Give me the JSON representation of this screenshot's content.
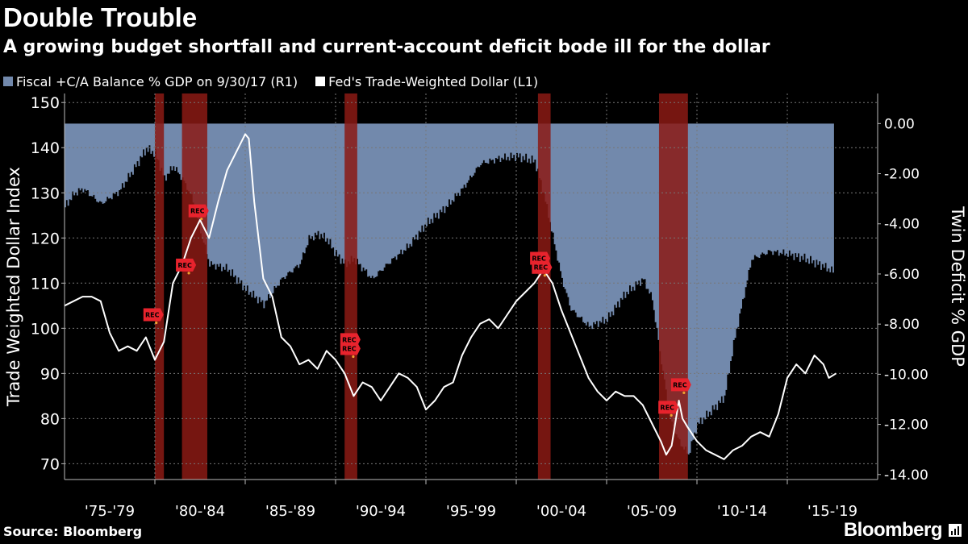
{
  "chart_data": {
    "type": "line+area",
    "title": "Double Trouble",
    "subtitle": "A growing budget shortfall and current-account deficit bode ill for the dollar",
    "legend": [
      {
        "label": "Fiscal +C/A Balance % GDP on 9/30/17 (R1)",
        "color": "#7289ac"
      },
      {
        "label": "Fed's Trade-Weighted Dollar (L1)",
        "color": "#ffffff"
      }
    ],
    "ylabel_left": "Trade Weighted Dollar Index",
    "ylabel_right": "Twin Deficit % GDP",
    "left_ticks": [
      "150",
      "140",
      "130",
      "120",
      "110",
      "100",
      "90",
      "80",
      "70"
    ],
    "right_ticks": [
      "0.00",
      "-2.00",
      "-4.00",
      "-6.00",
      "-8.00",
      "-10.00",
      "-12.00",
      "-14.00"
    ],
    "x_ticks": [
      "'75-'79",
      "'80-'84",
      "'85-'89",
      "'90-'94",
      "'95-'99",
      "'00-'04",
      "'05-'09",
      "'10-'14",
      "'15-'19"
    ],
    "ylim_left": [
      66.5,
      152
    ],
    "ylim_right": [
      -14.2,
      1.2
    ],
    "xlim": [
      1975,
      2020
    ],
    "recessions": [
      [
        1980.0,
        1980.5
      ],
      [
        1981.5,
        1982.9
      ],
      [
        1990.5,
        1991.2
      ],
      [
        2001.2,
        2001.9
      ],
      [
        2007.9,
        2009.5
      ]
    ],
    "rec_label": "REC",
    "rec_markers": [
      {
        "t": 1979.9,
        "v": 103
      },
      {
        "t": 1981.7,
        "v": 114
      },
      {
        "t": 1982.4,
        "v": 126
      },
      {
        "t": 1990.8,
        "v": 97.5
      },
      {
        "t": 1990.8,
        "v": 95.5
      },
      {
        "t": 2001.3,
        "v": 115.5
      },
      {
        "t": 2001.4,
        "v": 113.5
      },
      {
        "t": 2008.4,
        "v": 82.5
      },
      {
        "t": 2009.1,
        "v": 87.5
      }
    ],
    "series": [
      {
        "name": "Fed's Trade-Weighted Dollar",
        "axis": "left",
        "color": "#ffffff",
        "x": [
          1975.0,
          1975.5,
          1976.0,
          1976.5,
          1977.0,
          1977.5,
          1978.0,
          1978.5,
          1979.0,
          1979.5,
          1980.0,
          1980.5,
          1981.0,
          1981.5,
          1982.0,
          1982.5,
          1983.0,
          1983.5,
          1984.0,
          1984.5,
          1985.0,
          1985.2,
          1985.5,
          1986.0,
          1986.5,
          1987.0,
          1987.5,
          1988.0,
          1988.5,
          1989.0,
          1989.5,
          1990.0,
          1990.5,
          1991.0,
          1991.5,
          1992.0,
          1992.5,
          1993.0,
          1993.5,
          1994.0,
          1994.5,
          1995.0,
          1995.5,
          1996.0,
          1996.5,
          1997.0,
          1997.5,
          1998.0,
          1998.5,
          1999.0,
          1999.5,
          2000.0,
          2000.5,
          2001.0,
          2001.5,
          2002.0,
          2002.5,
          2003.0,
          2003.5,
          2004.0,
          2004.5,
          2005.0,
          2005.5,
          2006.0,
          2006.5,
          2007.0,
          2007.5,
          2008.0,
          2008.3,
          2008.6,
          2009.0,
          2009.2,
          2009.5,
          2010.0,
          2010.5,
          2011.0,
          2011.5,
          2012.0,
          2012.5,
          2013.0,
          2013.5,
          2014.0,
          2014.5,
          2015.0,
          2015.5,
          2016.0,
          2016.5,
          2017.0,
          2017.3,
          2017.7
        ],
        "values": [
          105,
          106,
          107,
          107,
          106,
          99,
          95,
          96,
          95,
          98,
          93,
          97,
          110,
          114,
          120,
          124,
          120,
          128,
          135,
          139,
          143,
          142,
          128,
          111,
          107,
          98,
          96,
          92,
          93,
          91,
          95,
          93,
          90,
          85,
          88,
          87,
          84,
          87,
          90,
          89,
          87,
          82,
          84,
          87,
          88,
          94,
          98,
          101,
          102,
          100,
          103,
          106,
          108,
          110,
          113,
          110,
          104,
          99,
          94,
          89,
          86,
          84,
          86,
          85,
          85,
          83,
          79,
          75,
          72,
          74,
          84,
          80,
          78,
          75,
          73,
          72,
          71,
          73,
          74,
          76,
          77,
          76,
          81,
          89,
          92,
          90,
          94,
          92,
          89,
          90
        ]
      },
      {
        "name": "Fiscal +C/A Balance % GDP",
        "axis": "right",
        "color": "#7289ac",
        "x": [
          1975.0,
          1975.5,
          1976.0,
          1977.0,
          1978.0,
          1979.0,
          1979.5,
          1980.0,
          1980.5,
          1981.0,
          1981.5,
          1982.0,
          1982.5,
          1983.0,
          1984.0,
          1985.0,
          1986.0,
          1987.0,
          1988.0,
          1988.5,
          1989.0,
          1989.5,
          1990.0,
          1990.5,
          1991.0,
          1992.0,
          1993.0,
          1994.0,
          1995.0,
          1996.0,
          1997.0,
          1998.0,
          1999.0,
          2000.0,
          2000.5,
          2001.0,
          2001.5,
          2002.0,
          2002.5,
          2003.0,
          2004.0,
          2005.0,
          2006.0,
          2007.0,
          2007.5,
          2008.0,
          2008.5,
          2009.0,
          2009.5,
          2010.0,
          2011.0,
          2011.5,
          2012.0,
          2013.0,
          2014.0,
          2015.0,
          2016.0,
          2017.0,
          2017.5
        ],
        "values": [
          -3.3,
          -2.8,
          -2.6,
          -3.2,
          -2.7,
          -1.6,
          -1.0,
          -1.2,
          -2.2,
          -1.7,
          -2.2,
          -2.9,
          -4.3,
          -5.6,
          -5.8,
          -6.6,
          -7.2,
          -6.2,
          -5.6,
          -4.6,
          -4.4,
          -4.6,
          -5.2,
          -5.6,
          -5.4,
          -6.2,
          -5.5,
          -4.9,
          -4.0,
          -3.4,
          -2.6,
          -1.6,
          -1.4,
          -1.3,
          -1.4,
          -1.5,
          -2.8,
          -4.5,
          -6.2,
          -7.4,
          -8.1,
          -7.8,
          -6.8,
          -6.2,
          -7.0,
          -9.5,
          -11.8,
          -12.7,
          -13.2,
          -12.0,
          -11.3,
          -10.9,
          -8.8,
          -5.4,
          -5.1,
          -5.2,
          -5.4,
          -5.7,
          -5.9
        ]
      }
    ]
  },
  "source_label": "Source: Bloomberg",
  "brand": "Bloomberg",
  "colors": {
    "background": "#000000",
    "area": "#7289ac",
    "line": "#ffffff",
    "recession": "#8b1a14",
    "rec_marker": "#e8232d",
    "marker_dot": "#f0a030",
    "grid": "#777777"
  }
}
